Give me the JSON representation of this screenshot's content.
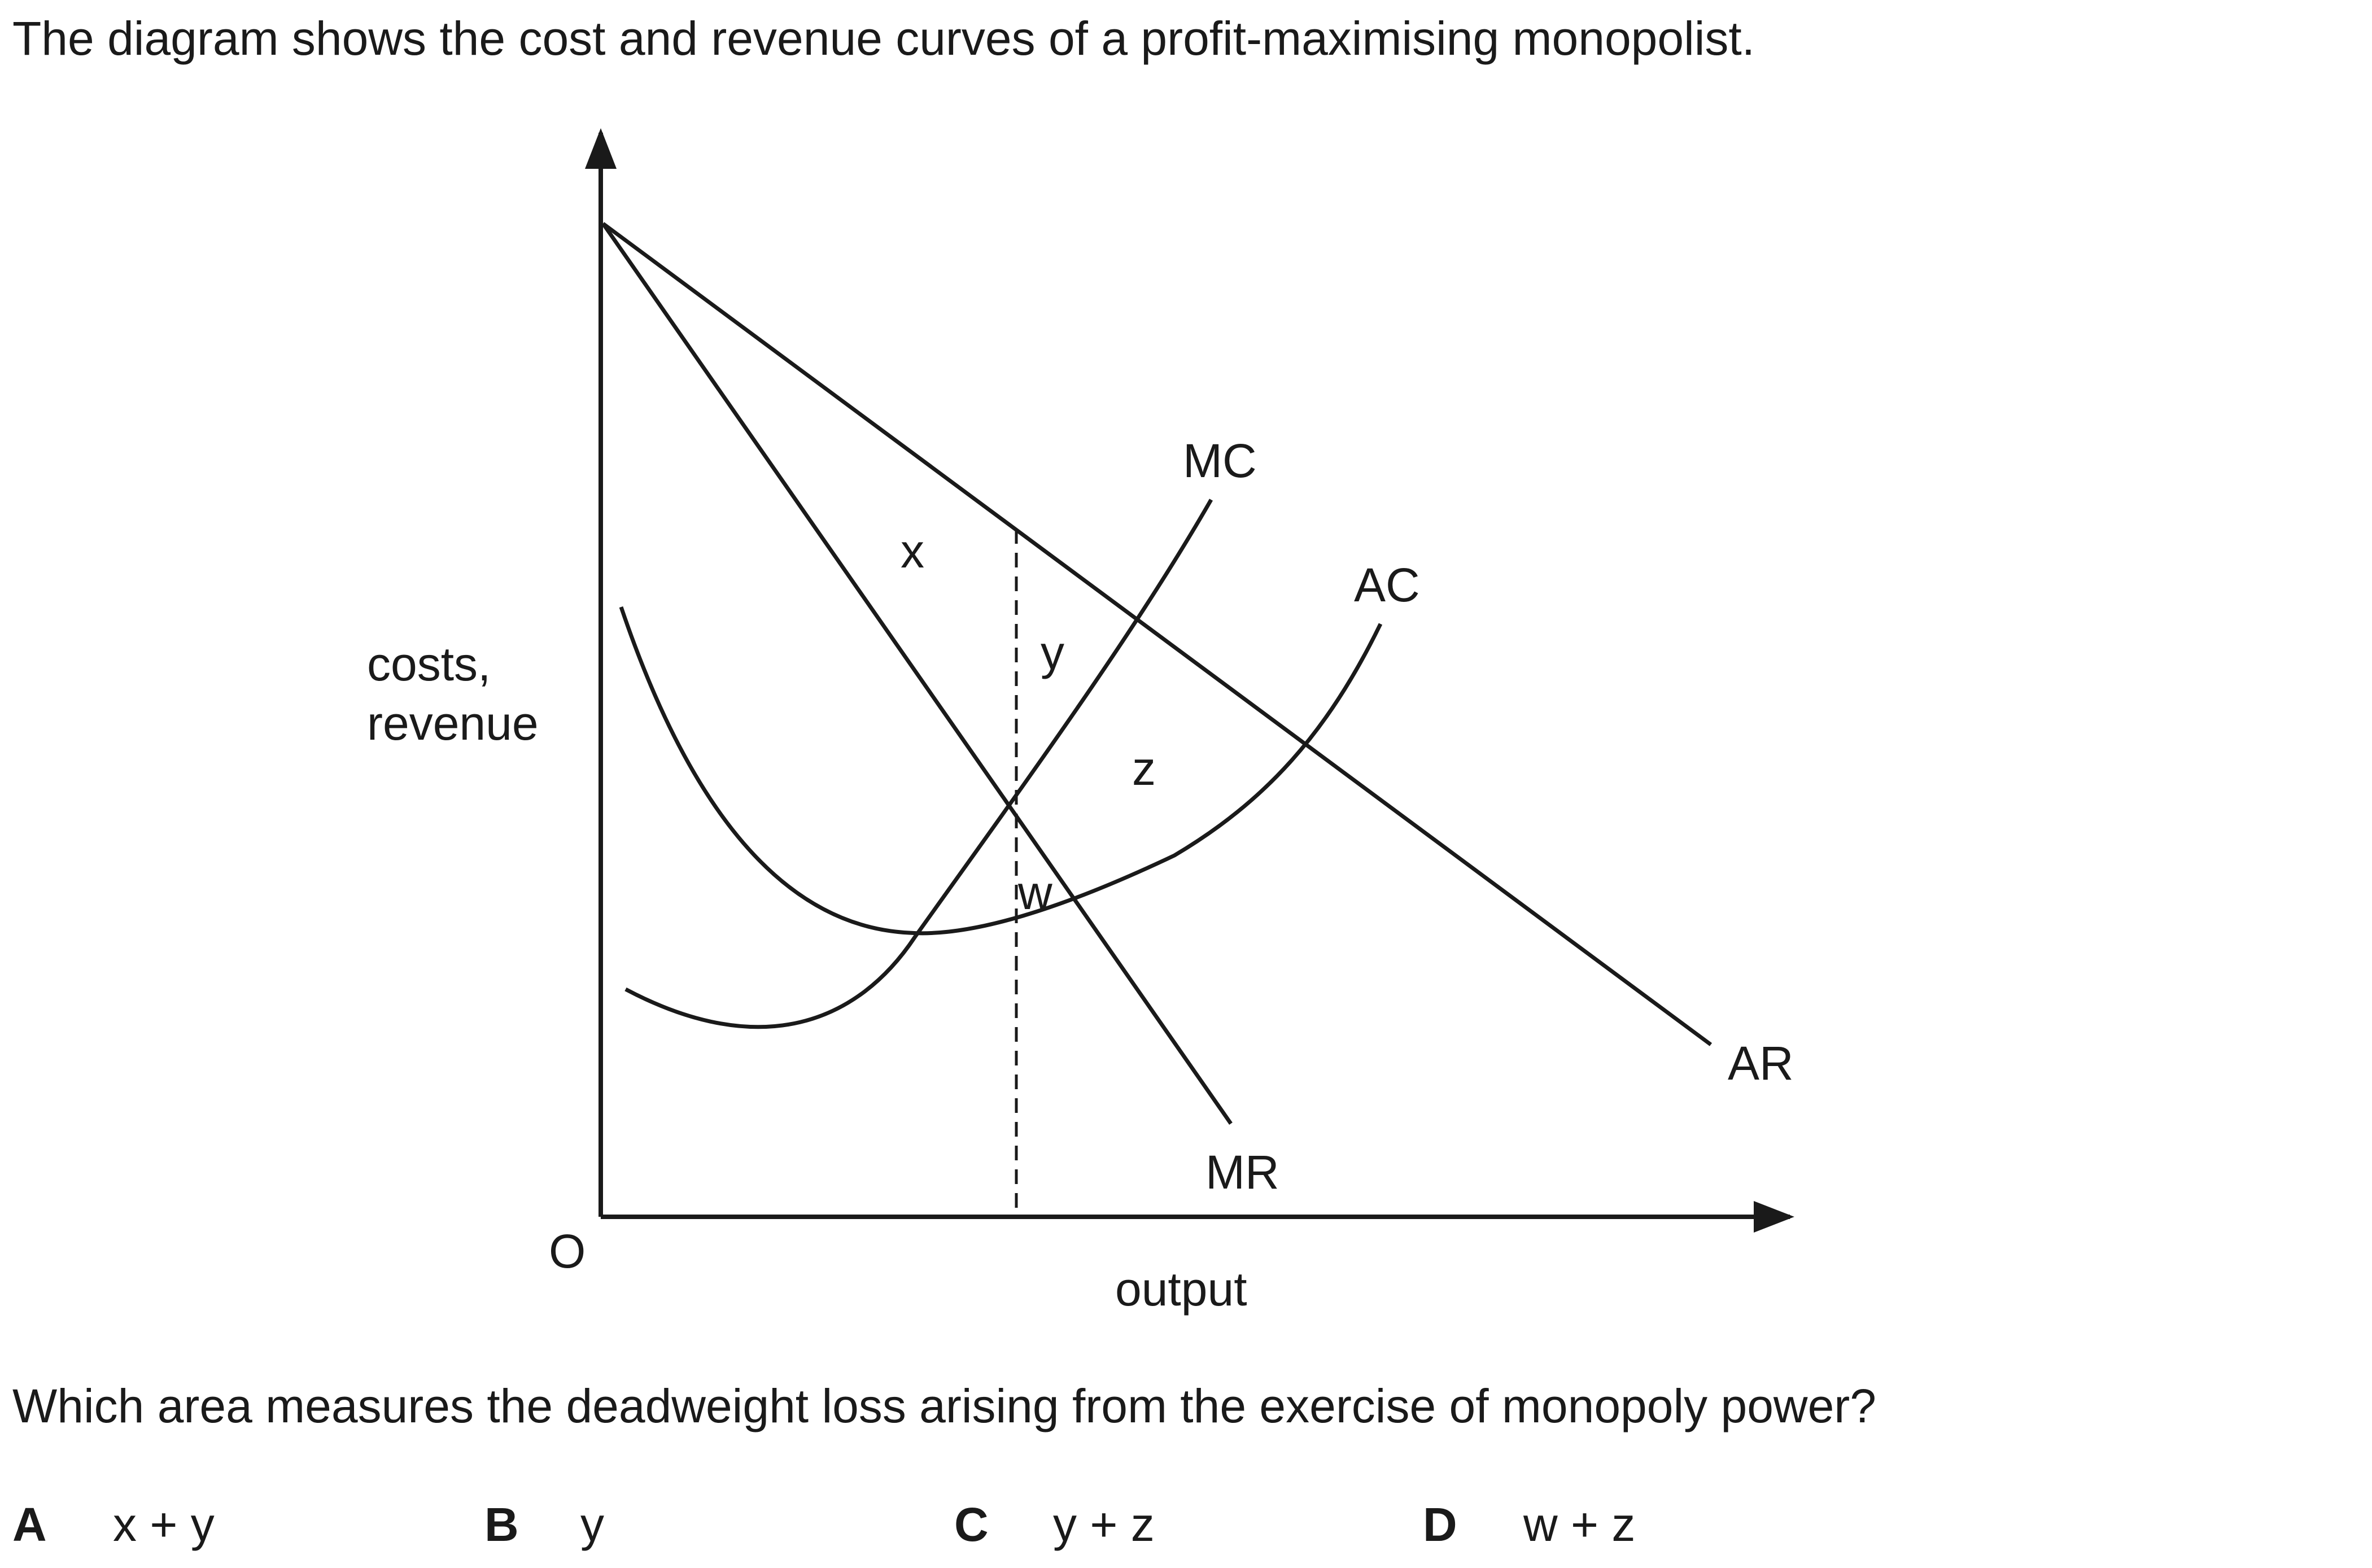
{
  "intro": "The diagram shows the cost and revenue curves of a profit-maximising monopolist.",
  "diagram": {
    "y_axis_label_line1": "costs,",
    "y_axis_label_line2": "revenue",
    "x_axis_label": "output",
    "origin_label": "O",
    "curve_labels": {
      "mc": "MC",
      "ac": "AC",
      "ar": "AR",
      "mr": "MR"
    },
    "area_labels": {
      "x": "x",
      "y": "y",
      "z": "z",
      "w": "w"
    }
  },
  "question": "Which area measures the deadweight loss arising from the exercise of monopoly power?",
  "options": [
    {
      "letter": "A",
      "text": "x + y"
    },
    {
      "letter": "B",
      "text": "y"
    },
    {
      "letter": "C",
      "text": "y + z"
    },
    {
      "letter": "D",
      "text": "w + z"
    }
  ]
}
